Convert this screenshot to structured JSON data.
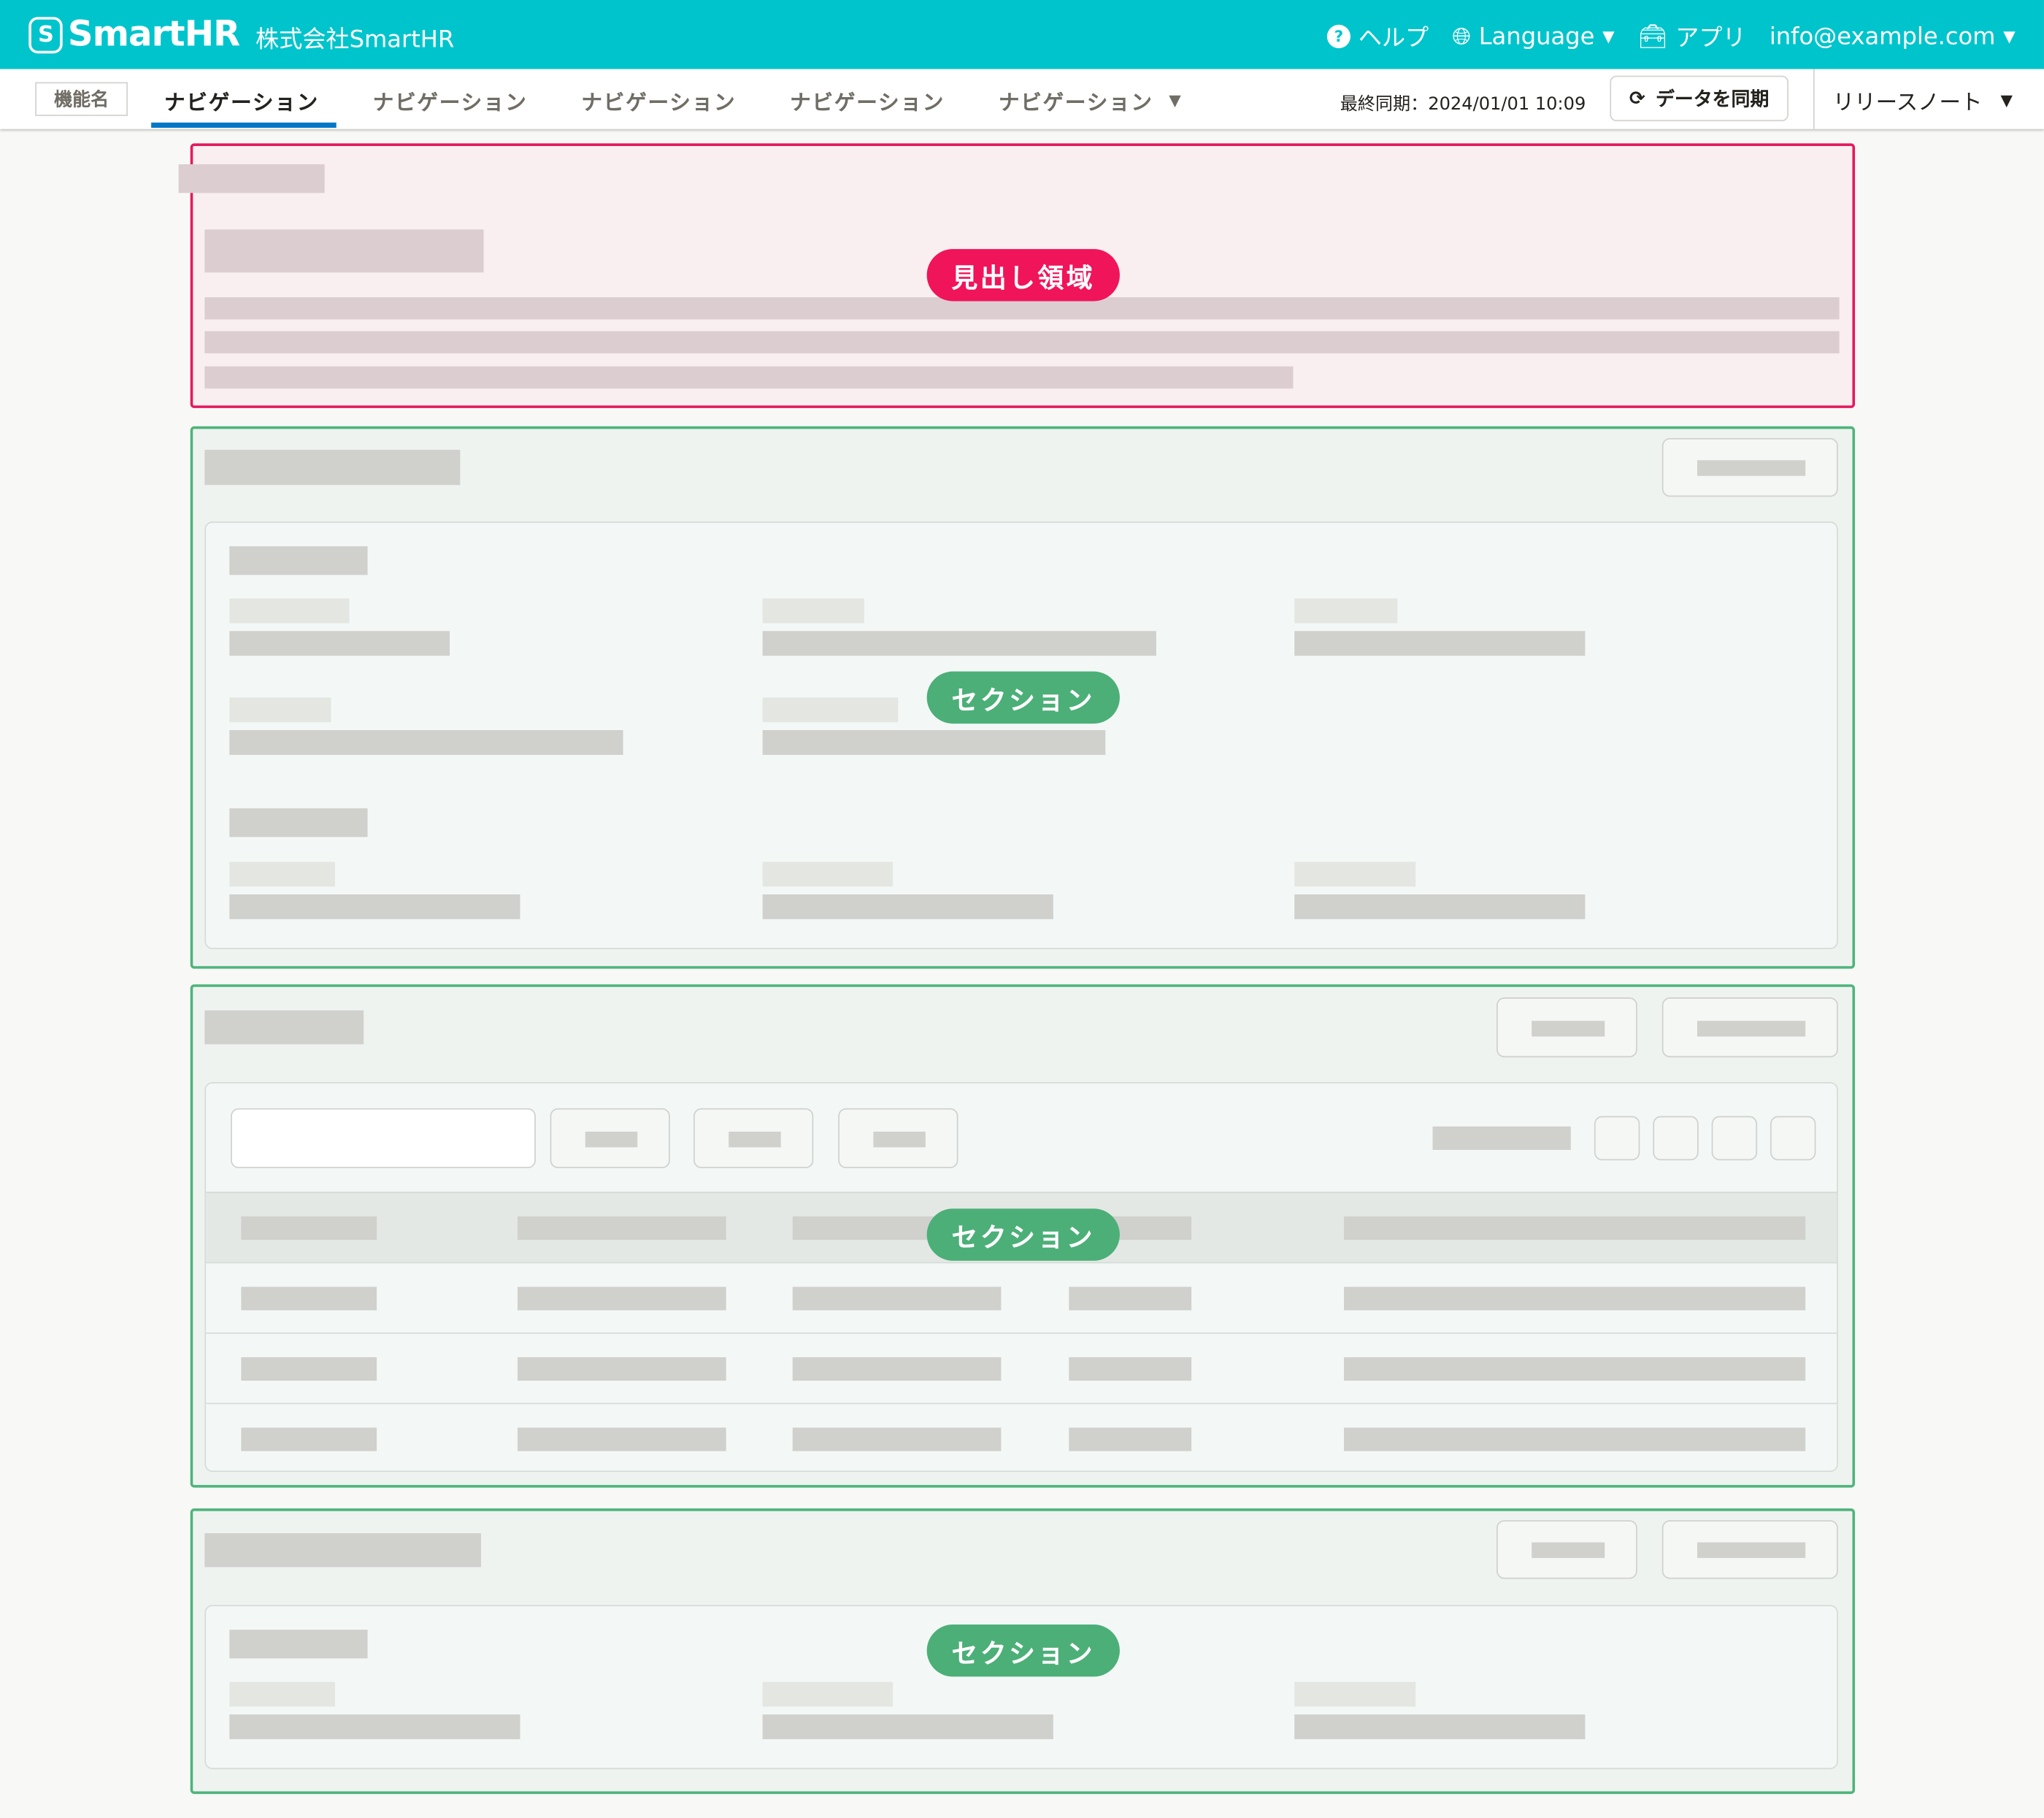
{
  "header": {
    "logo": "SmartHR",
    "company": "株式会社SmartHR",
    "help": "ヘルプ",
    "language": "Language",
    "apps": "アプリ",
    "user": "info@example.com",
    "brand_color": "#00c4cc"
  },
  "nav": {
    "feature_name": "機能名",
    "tabs": [
      {
        "label": "ナビゲーション",
        "active": true
      },
      {
        "label": "ナビゲーション"
      },
      {
        "label": "ナビゲーション"
      },
      {
        "label": "ナビゲーション"
      },
      {
        "label": "ナビゲーション",
        "dropdown": true
      }
    ],
    "last_sync": "最終同期：2024/01/01 10:09",
    "sync_button": "データを同期",
    "release_notes": "リリースノート",
    "active_color": "#0077c7"
  },
  "badges": {
    "heading": "見出し領域",
    "section": "セクション",
    "heading_color": "#f0145a",
    "section_color": "#4caf78"
  }
}
